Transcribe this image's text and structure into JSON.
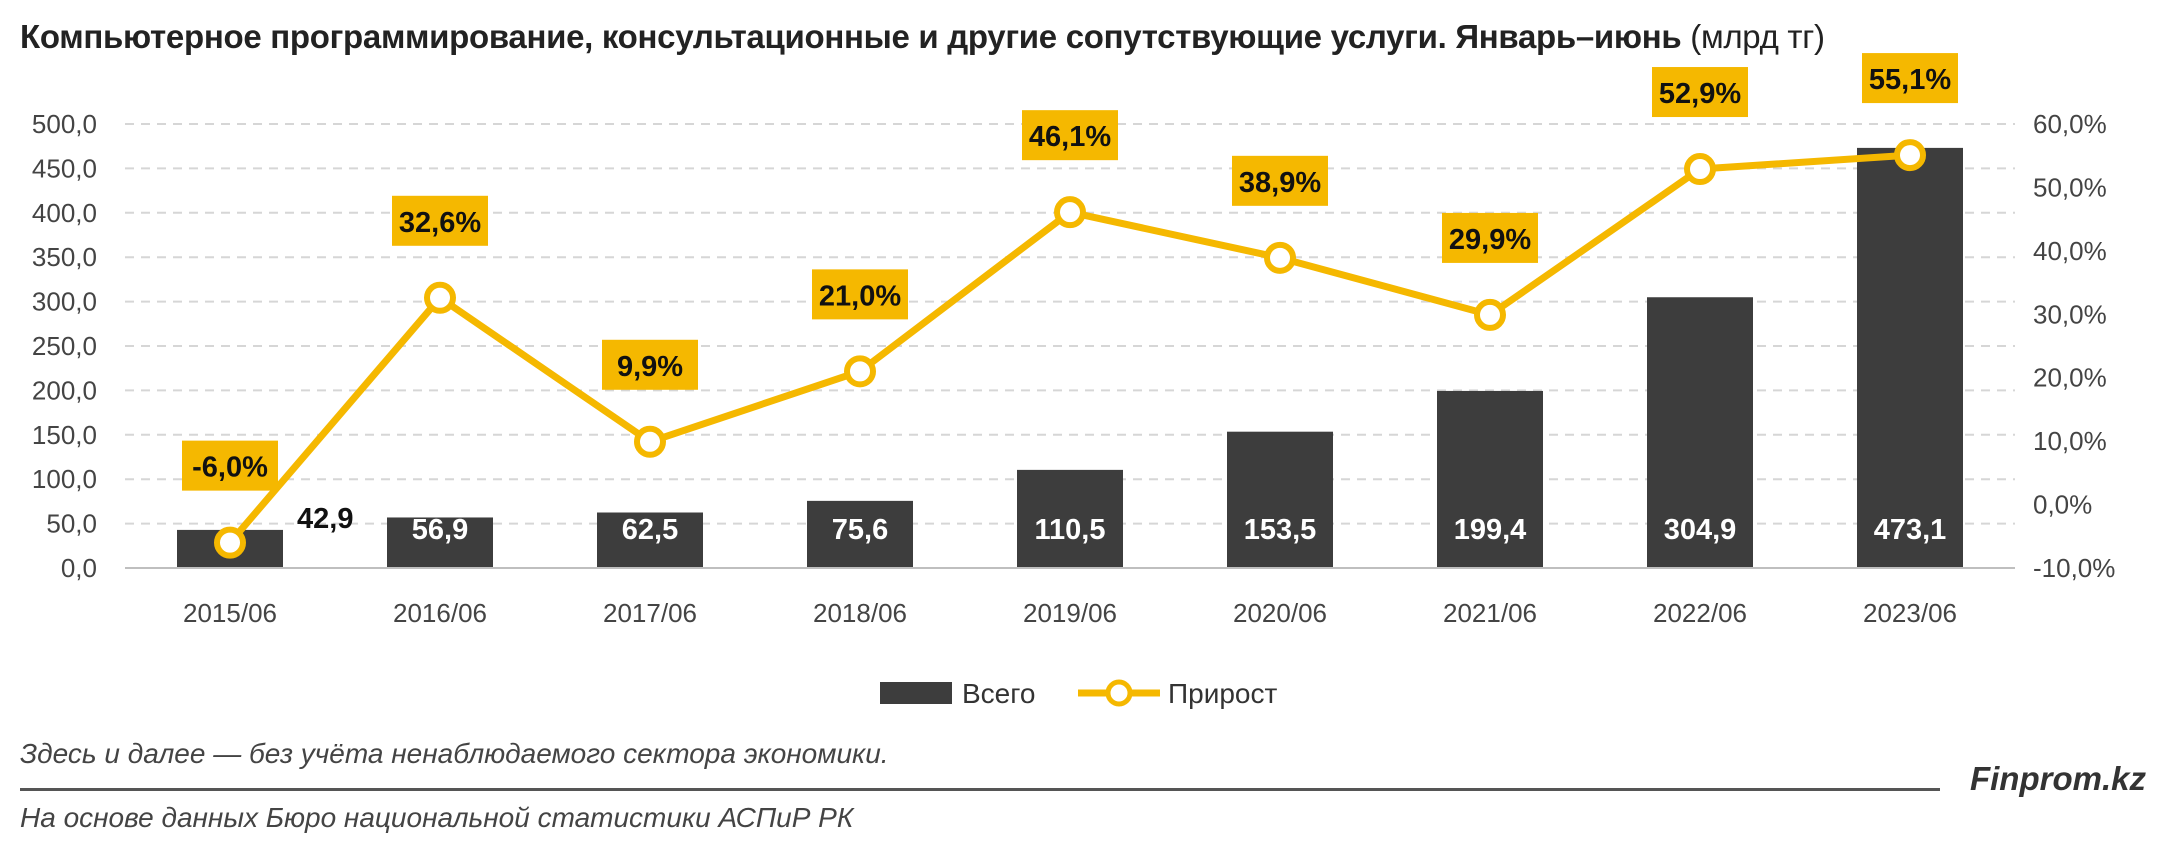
{
  "title": {
    "main": "Компьютерное программирование, консультационные и другие сопутствующие услуги. Январь–июнь",
    "unit": "(млрд тг)"
  },
  "chart_data": {
    "type": "bar+line",
    "categories": [
      "2015/06",
      "2016/06",
      "2017/06",
      "2018/06",
      "2019/06",
      "2020/06",
      "2021/06",
      "2022/06",
      "2023/06"
    ],
    "series": [
      {
        "name": "Всего",
        "type": "bar",
        "axis": "left",
        "color": "#3d3d3d",
        "values": [
          42.9,
          56.9,
          62.5,
          75.6,
          110.5,
          153.5,
          199.4,
          304.9,
          473.1
        ],
        "labels": [
          "42,9",
          "56,9",
          "62,5",
          "75,6",
          "110,5",
          "153,5",
          "199,4",
          "304,9",
          "473,1"
        ]
      },
      {
        "name": "Прирост",
        "type": "line",
        "axis": "right",
        "color": "#f5b800",
        "values": [
          -6.0,
          32.6,
          9.9,
          21.0,
          46.1,
          38.9,
          29.9,
          52.9,
          55.1
        ],
        "labels": [
          "-6,0%",
          "32,6%",
          "9,9%",
          "21,0%",
          "46,1%",
          "38,9%",
          "29,9%",
          "52,9%",
          "55,1%"
        ]
      }
    ],
    "y_left": {
      "min": 0,
      "max": 500,
      "step": 50,
      "ticks": [
        "0,0",
        "50,0",
        "100,0",
        "150,0",
        "200,0",
        "250,0",
        "300,0",
        "350,0",
        "400,0",
        "450,0",
        "500,0"
      ]
    },
    "y_right": {
      "min": -10,
      "max": 60,
      "step": 10,
      "ticks": [
        "-10,0%",
        "0,0%",
        "10,0%",
        "20,0%",
        "30,0%",
        "40,0%",
        "50,0%",
        "60,0%"
      ]
    },
    "grid": true,
    "legend_position": "bottom"
  },
  "footnote": "Здесь и далее — без учёта ненаблюдаемого сектора экономики.",
  "source": "На основе данных Бюро национальной статистики АСПиР РК",
  "brand": "Finprom.kz"
}
